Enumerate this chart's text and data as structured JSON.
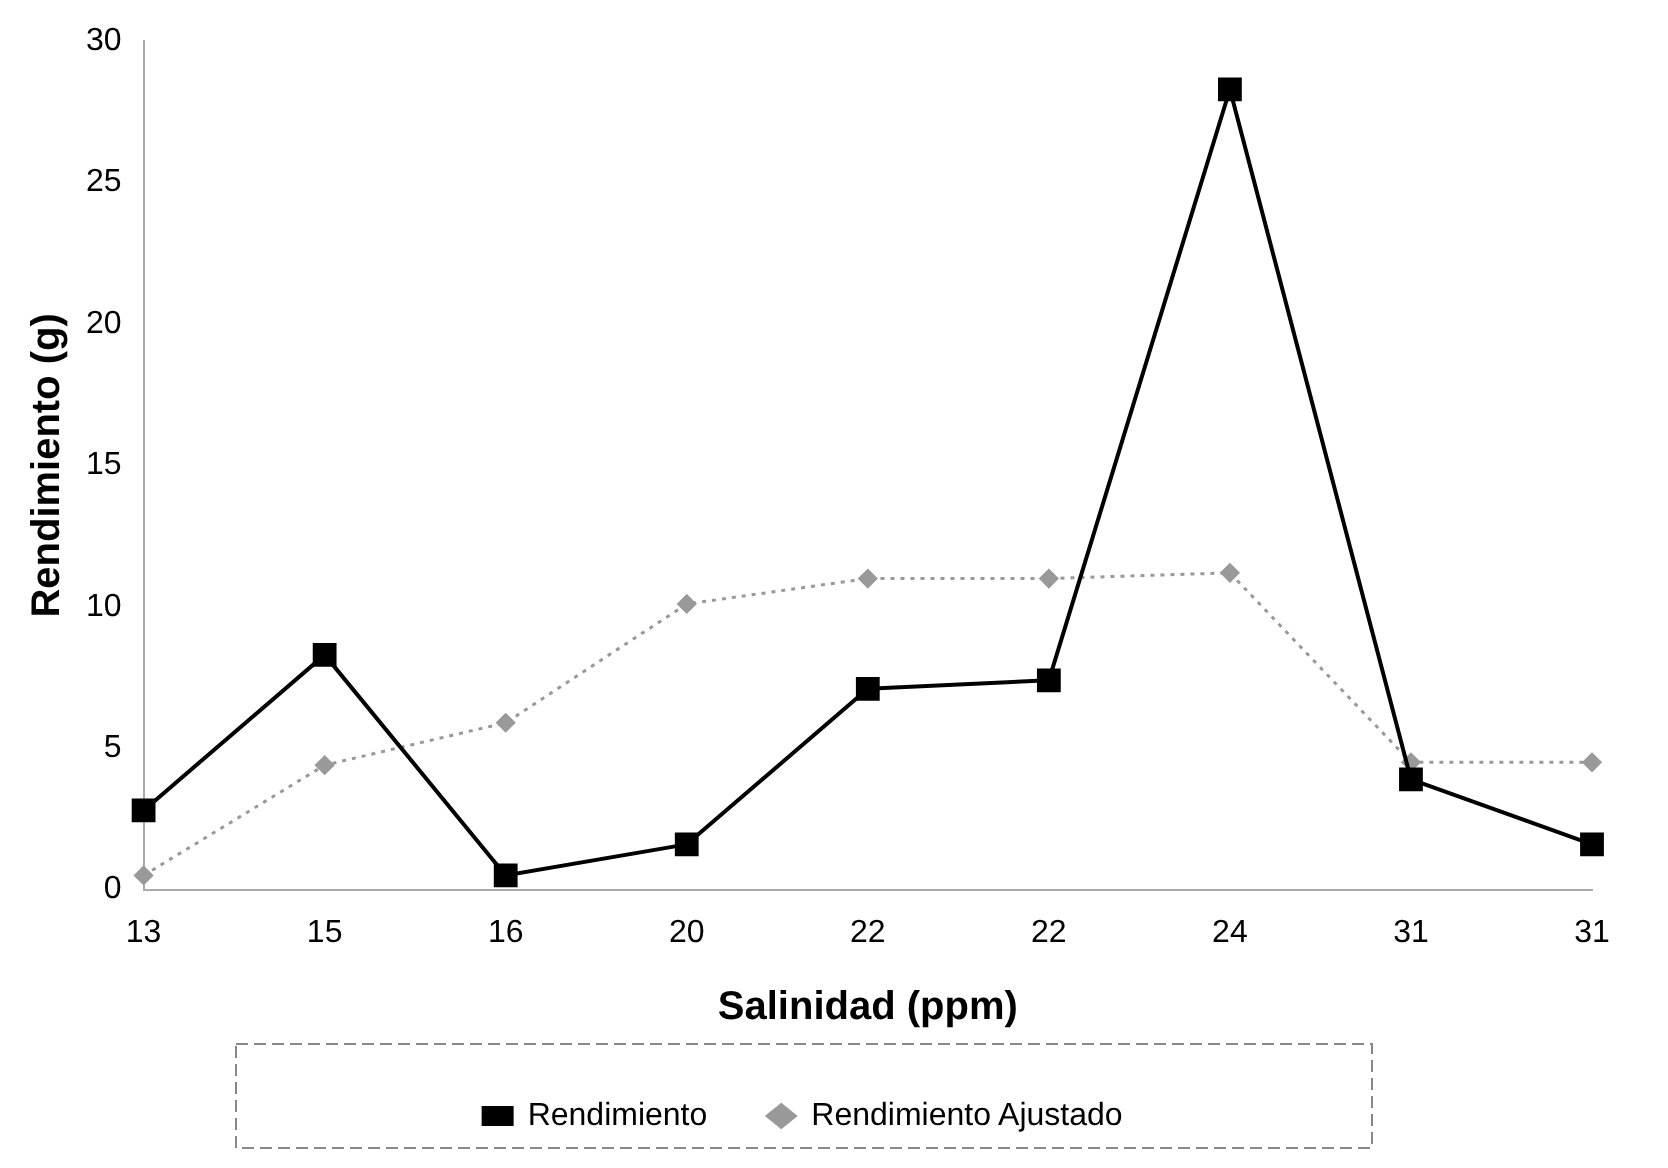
{
  "chart_data": {
    "type": "line",
    "xlabel": "Salinidad (ppm)",
    "ylabel": "Rendimiento (g)",
    "categories": [
      "13",
      "15",
      "16",
      "20",
      "22",
      "22",
      "24",
      "31",
      "31"
    ],
    "series": [
      {
        "name": "Rendimiento",
        "color": "#000000",
        "marker": "square",
        "line_style": "solid",
        "values": [
          2.8,
          8.3,
          0.5,
          1.6,
          7.1,
          7.4,
          28.3,
          3.9,
          1.6
        ]
      },
      {
        "name": "Rendimiento Ajustado",
        "color": "#999999",
        "marker": "diamond",
        "line_style": "dotted",
        "values": [
          0.5,
          4.4,
          5.9,
          10.1,
          11.0,
          11.0,
          11.2,
          4.5,
          4.5
        ]
      }
    ],
    "ylim": [
      0,
      30
    ],
    "yticks": [
      0,
      5,
      10,
      15,
      20,
      25,
      30
    ],
    "grid": false,
    "legend": "bottom"
  }
}
